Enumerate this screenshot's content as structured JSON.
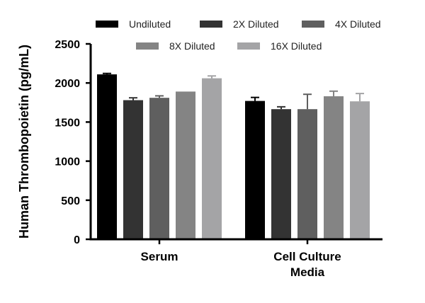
{
  "chart_data": {
    "type": "bar",
    "title": "",
    "xlabel": "",
    "ylabel": "Human Thrombopoietin (pg/mL)",
    "ylim": [
      0,
      2500
    ],
    "yticks": [
      "0",
      "500",
      "1000",
      "1500",
      "2000",
      "2500"
    ],
    "categories": [
      "Serum",
      "Cell Culture Media"
    ],
    "category_display": [
      [
        "Serum"
      ],
      [
        "Cell Culture",
        "Media"
      ]
    ],
    "legend_position": "top",
    "grid": false,
    "series": [
      {
        "name": "Undiluted",
        "color": "#000000",
        "values": [
          2110,
          1770
        ],
        "errors": [
          12,
          45
        ]
      },
      {
        "name": "2X Diluted",
        "color": "#333333",
        "values": [
          1780,
          1665
        ],
        "errors": [
          30,
          30
        ]
      },
      {
        "name": "4X Diluted",
        "color": "#5f5f5f",
        "values": [
          1810,
          1665
        ],
        "errors": [
          25,
          190
        ]
      },
      {
        "name": "8X Diluted",
        "color": "#848484",
        "values": [
          1890,
          1830
        ],
        "errors": [
          0,
          65
        ]
      },
      {
        "name": "16X Diluted",
        "color": "#a4a4a6",
        "values": [
          2060,
          1765
        ],
        "errors": [
          30,
          100
        ]
      }
    ]
  }
}
